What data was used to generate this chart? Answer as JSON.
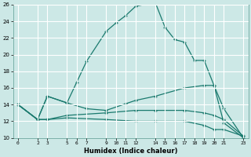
{
  "xlabel": "Humidex (Indice chaleur)",
  "bg_color": "#cce8e6",
  "grid_color": "#b0d4d0",
  "line_color": "#1a7a6e",
  "xlim": [
    -0.5,
    23.5
  ],
  "ylim": [
    10,
    26
  ],
  "xticks": [
    0,
    2,
    3,
    5,
    6,
    7,
    9,
    10,
    11,
    12,
    14,
    15,
    16,
    17,
    18,
    19,
    20,
    21,
    23
  ],
  "yticks": [
    10,
    12,
    14,
    16,
    18,
    20,
    22,
    24,
    26
  ],
  "line1_x": [
    0,
    2,
    3,
    5,
    6,
    7,
    9,
    10,
    11,
    12,
    14,
    15,
    16,
    17,
    18,
    19,
    20,
    21,
    23
  ],
  "line1_y": [
    14,
    12.2,
    15,
    14.2,
    16.7,
    19.2,
    22.8,
    23.8,
    24.7,
    25.8,
    26.3,
    23.3,
    21.8,
    21.5,
    19.3,
    19.3,
    16.3,
    11.8,
    10
  ],
  "line2_x": [
    0,
    2,
    3,
    5,
    7,
    9,
    11,
    12,
    14,
    17,
    19,
    20,
    21,
    23
  ],
  "line2_y": [
    14,
    12.2,
    15,
    14.2,
    13.5,
    13.3,
    14.1,
    14.5,
    15.0,
    16.0,
    16.3,
    16.3,
    13.5,
    10
  ],
  "line3_x": [
    0,
    2,
    3,
    5,
    9,
    12,
    14,
    17,
    19,
    20,
    21,
    23
  ],
  "line3_y": [
    14,
    12.2,
    12.2,
    12.7,
    13.0,
    13.3,
    13.3,
    13.3,
    13.0,
    12.7,
    12.2,
    10.2
  ],
  "line4_x": [
    0,
    2,
    3,
    5,
    9,
    12,
    14,
    17,
    19,
    20,
    21,
    23
  ],
  "line4_y": [
    14,
    12.2,
    12.2,
    12.4,
    12.2,
    12.0,
    12.0,
    12.0,
    11.5,
    11.0,
    11.0,
    10.2
  ]
}
